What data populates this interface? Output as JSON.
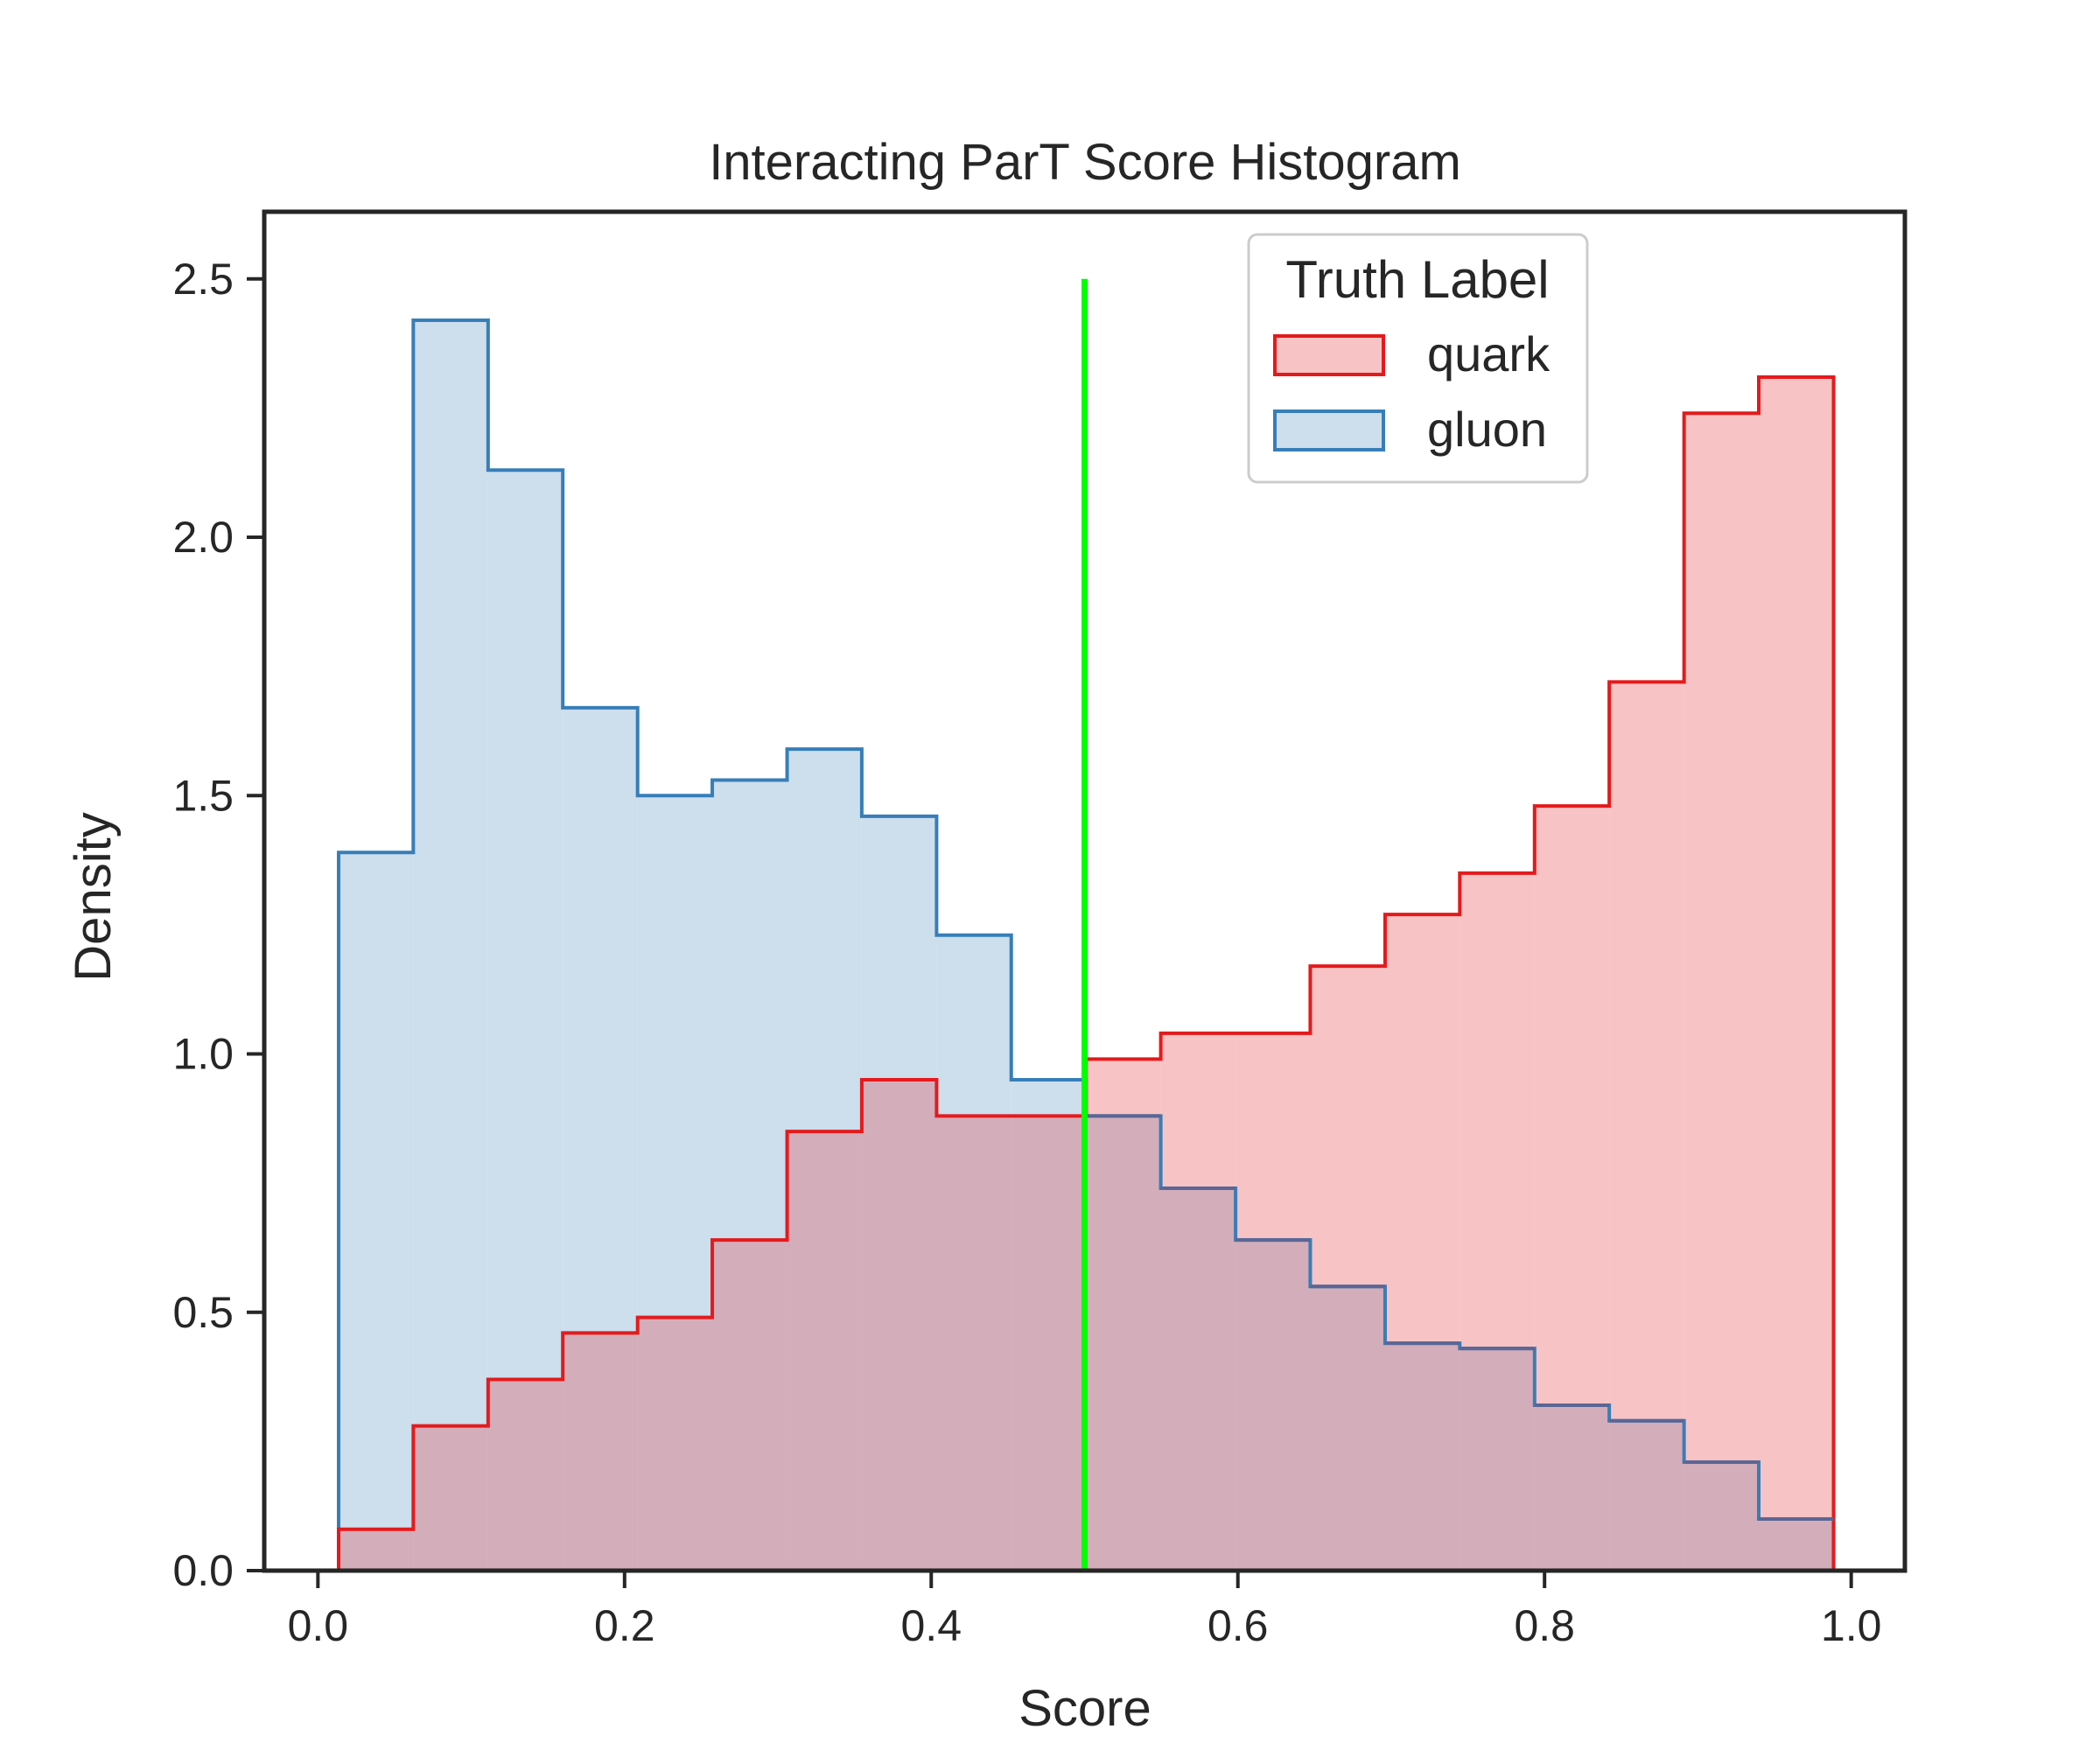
{
  "chart_data": {
    "type": "histogram",
    "title": "Interacting ParT Score Histogram",
    "xlabel": "Score",
    "ylabel": "Density",
    "xlim": [
      -0.035,
      1.035
    ],
    "ylim": [
      0,
      2.63
    ],
    "xticks": [
      0.0,
      0.2,
      0.4,
      0.6,
      0.8,
      1.0
    ],
    "xtick_labels": [
      "0.0",
      "0.2",
      "0.4",
      "0.6",
      "0.8",
      "1.0"
    ],
    "yticks": [
      0.0,
      0.5,
      1.0,
      1.5,
      2.0,
      2.5
    ],
    "ytick_labels": [
      "0.0",
      "0.5",
      "1.0",
      "1.5",
      "2.0",
      "2.5"
    ],
    "bin_edges": [
      0.0135,
      0.0622,
      0.111,
      0.1597,
      0.2085,
      0.2572,
      0.306,
      0.3547,
      0.4035,
      0.4522,
      0.501,
      0.5497,
      0.5985,
      0.6472,
      0.696,
      0.7447,
      0.7935,
      0.8422,
      0.891,
      0.9397,
      0.9885
    ],
    "series": [
      {
        "name": "quark",
        "line_color": "#e41a1c",
        "fill_color": "#f7c3c4",
        "values": [
          0.08,
          0.28,
          0.37,
          0.46,
          0.49,
          0.64,
          0.85,
          0.95,
          0.88,
          0.88,
          0.99,
          1.04,
          1.04,
          1.17,
          1.27,
          1.35,
          1.48,
          1.72,
          2.24,
          2.31
        ]
      },
      {
        "name": "gluon",
        "line_color": "#377eb8",
        "fill_color": "#cddeed",
        "values": [
          1.39,
          2.42,
          2.13,
          1.67,
          1.5,
          1.53,
          1.59,
          1.46,
          1.23,
          0.95,
          0.88,
          0.74,
          0.64,
          0.55,
          0.44,
          0.43,
          0.32,
          0.29,
          0.21,
          0.1
        ]
      }
    ],
    "overlap_fill_color": "#d3adba",
    "overlap_line_color": "#5b6694",
    "threshold": {
      "x": 0.5,
      "y_range": [
        0,
        2.5
      ],
      "color": "#00ff00"
    },
    "legend": {
      "title": "Truth Label",
      "placement": "top-right"
    },
    "grid": false
  }
}
